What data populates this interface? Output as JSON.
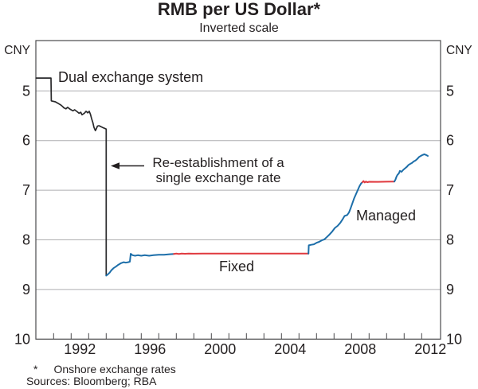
{
  "chart_data": {
    "type": "line",
    "title": "RMB per US Dollar*",
    "subtitle": "Inverted scale",
    "unit_left": "CNY",
    "unit_right": "CNY",
    "y_axis": {
      "ticks": [
        5,
        6,
        7,
        8,
        9,
        10
      ],
      "gridlines": [
        5,
        6,
        7,
        8,
        9
      ],
      "min": 4,
      "max": 10,
      "inverted": true
    },
    "x_axis": {
      "tick_start": 1991,
      "tick_end": 2012,
      "labels": [
        1992,
        1996,
        2000,
        2004,
        2008,
        2012
      ],
      "min": 1990,
      "max": 2013.1
    },
    "colors": {
      "frame": "#4a4a4c",
      "grid": "#aeaeb0",
      "text": "#231f20",
      "black_line": "#29292b",
      "blue": "#1c6ea9",
      "red": "#e0393e"
    },
    "series": [
      {
        "name": "dual-exchange-system",
        "color": "#29292b",
        "width": 1.7,
        "points": [
          [
            1990.0,
            4.74
          ],
          [
            1990.85,
            4.74
          ],
          [
            1990.87,
            5.2
          ],
          [
            1991.1,
            5.22
          ],
          [
            1991.25,
            5.25
          ],
          [
            1991.4,
            5.28
          ],
          [
            1991.5,
            5.31
          ],
          [
            1991.58,
            5.34
          ],
          [
            1991.7,
            5.36
          ],
          [
            1991.8,
            5.33
          ],
          [
            1991.95,
            5.37
          ],
          [
            1992.1,
            5.4
          ],
          [
            1992.2,
            5.38
          ],
          [
            1992.35,
            5.42
          ],
          [
            1992.45,
            5.45
          ],
          [
            1992.55,
            5.43
          ],
          [
            1992.62,
            5.48
          ],
          [
            1992.75,
            5.45
          ],
          [
            1992.85,
            5.41
          ],
          [
            1992.95,
            5.44
          ],
          [
            1993.03,
            5.41
          ],
          [
            1993.1,
            5.47
          ],
          [
            1993.17,
            5.56
          ],
          [
            1993.24,
            5.64
          ],
          [
            1993.3,
            5.73
          ],
          [
            1993.38,
            5.8
          ],
          [
            1993.44,
            5.76
          ],
          [
            1993.5,
            5.71
          ],
          [
            1993.58,
            5.7
          ],
          [
            1993.7,
            5.72
          ],
          [
            1993.82,
            5.74
          ],
          [
            1993.95,
            5.76
          ],
          [
            1994.0,
            5.77
          ],
          [
            1994.0,
            8.72
          ]
        ]
      },
      {
        "name": "managed-1994",
        "color": "#1c6ea9",
        "width": 2,
        "points": [
          [
            1994.0,
            8.72
          ],
          [
            1994.08,
            8.7
          ],
          [
            1994.2,
            8.66
          ],
          [
            1994.3,
            8.61
          ],
          [
            1994.42,
            8.57
          ],
          [
            1994.55,
            8.54
          ],
          [
            1994.7,
            8.5
          ],
          [
            1994.85,
            8.47
          ],
          [
            1995.0,
            8.45
          ],
          [
            1995.12,
            8.46
          ],
          [
            1995.25,
            8.45
          ],
          [
            1995.35,
            8.44
          ],
          [
            1995.4,
            8.28
          ],
          [
            1995.5,
            8.31
          ],
          [
            1995.65,
            8.32
          ],
          [
            1995.8,
            8.31
          ],
          [
            1996.0,
            8.32
          ],
          [
            1996.2,
            8.31
          ],
          [
            1996.45,
            8.32
          ],
          [
            1996.7,
            8.31
          ],
          [
            1997.0,
            8.3
          ],
          [
            1997.3,
            8.3
          ],
          [
            1997.6,
            8.29
          ],
          [
            1997.86,
            8.283
          ]
        ]
      },
      {
        "name": "fixed-1998-2005",
        "color": "#e0393e",
        "width": 2,
        "points": [
          [
            1997.86,
            8.283
          ],
          [
            1998.0,
            8.277
          ],
          [
            1998.15,
            8.283
          ],
          [
            1998.3,
            8.277
          ],
          [
            1998.5,
            8.281
          ],
          [
            1998.7,
            8.277
          ],
          [
            1999.0,
            8.279
          ],
          [
            1999.5,
            8.277
          ],
          [
            2000.5,
            8.277
          ],
          [
            2001.5,
            8.277
          ],
          [
            2002.5,
            8.277
          ],
          [
            2003.5,
            8.277
          ],
          [
            2004.5,
            8.277
          ],
          [
            2005.54,
            8.277
          ]
        ]
      },
      {
        "name": "managed-2005",
        "color": "#1c6ea9",
        "width": 2,
        "points": [
          [
            2005.54,
            8.277
          ],
          [
            2005.56,
            8.11
          ],
          [
            2005.7,
            8.1
          ],
          [
            2005.85,
            8.09
          ],
          [
            2006.0,
            8.06
          ],
          [
            2006.15,
            8.04
          ],
          [
            2006.3,
            8.01
          ],
          [
            2006.45,
            7.99
          ],
          [
            2006.6,
            7.94
          ],
          [
            2006.75,
            7.89
          ],
          [
            2006.9,
            7.83
          ],
          [
            2007.05,
            7.76
          ],
          [
            2007.2,
            7.72
          ],
          [
            2007.35,
            7.66
          ],
          [
            2007.5,
            7.58
          ],
          [
            2007.6,
            7.52
          ],
          [
            2007.75,
            7.5
          ],
          [
            2007.85,
            7.45
          ],
          [
            2007.95,
            7.36
          ],
          [
            2008.05,
            7.26
          ],
          [
            2008.15,
            7.16
          ],
          [
            2008.25,
            7.08
          ],
          [
            2008.35,
            7.0
          ],
          [
            2008.45,
            6.92
          ],
          [
            2008.55,
            6.86
          ],
          [
            2008.62,
            6.84
          ]
        ]
      },
      {
        "name": "fixed-2008-2010",
        "color": "#e0393e",
        "width": 2,
        "points": [
          [
            2008.62,
            6.84
          ],
          [
            2008.68,
            6.815
          ],
          [
            2008.75,
            6.845
          ],
          [
            2008.82,
            6.825
          ],
          [
            2008.9,
            6.84
          ],
          [
            2009.0,
            6.83
          ],
          [
            2009.5,
            6.832
          ],
          [
            2010.0,
            6.828
          ],
          [
            2010.44,
            6.826
          ]
        ]
      },
      {
        "name": "managed-2010",
        "color": "#1c6ea9",
        "width": 2,
        "points": [
          [
            2010.44,
            6.826
          ],
          [
            2010.5,
            6.79
          ],
          [
            2010.56,
            6.73
          ],
          [
            2010.62,
            6.69
          ],
          [
            2010.7,
            6.66
          ],
          [
            2010.76,
            6.61
          ],
          [
            2010.85,
            6.63
          ],
          [
            2010.95,
            6.59
          ],
          [
            2011.05,
            6.56
          ],
          [
            2011.15,
            6.53
          ],
          [
            2011.25,
            6.49
          ],
          [
            2011.35,
            6.47
          ],
          [
            2011.45,
            6.45
          ],
          [
            2011.55,
            6.42
          ],
          [
            2011.65,
            6.4
          ],
          [
            2011.75,
            6.37
          ],
          [
            2011.85,
            6.33
          ],
          [
            2011.95,
            6.31
          ],
          [
            2012.05,
            6.29
          ],
          [
            2012.15,
            6.275
          ],
          [
            2012.25,
            6.29
          ],
          [
            2012.35,
            6.31
          ]
        ]
      }
    ],
    "annotations": {
      "dual": {
        "text": "Dual exchange system"
      },
      "reestablishment": {
        "line1": "Re-establishment of a",
        "line2": "single exchange rate"
      },
      "fixed": {
        "label": "Fixed"
      },
      "managed": {
        "label": "Managed"
      }
    },
    "legend": "none",
    "grid": "horizontal"
  },
  "footer": {
    "footnote_marker": "*",
    "footnote_text": "Onshore exchange rates",
    "sources": "Sources: Bloomberg; RBA"
  }
}
